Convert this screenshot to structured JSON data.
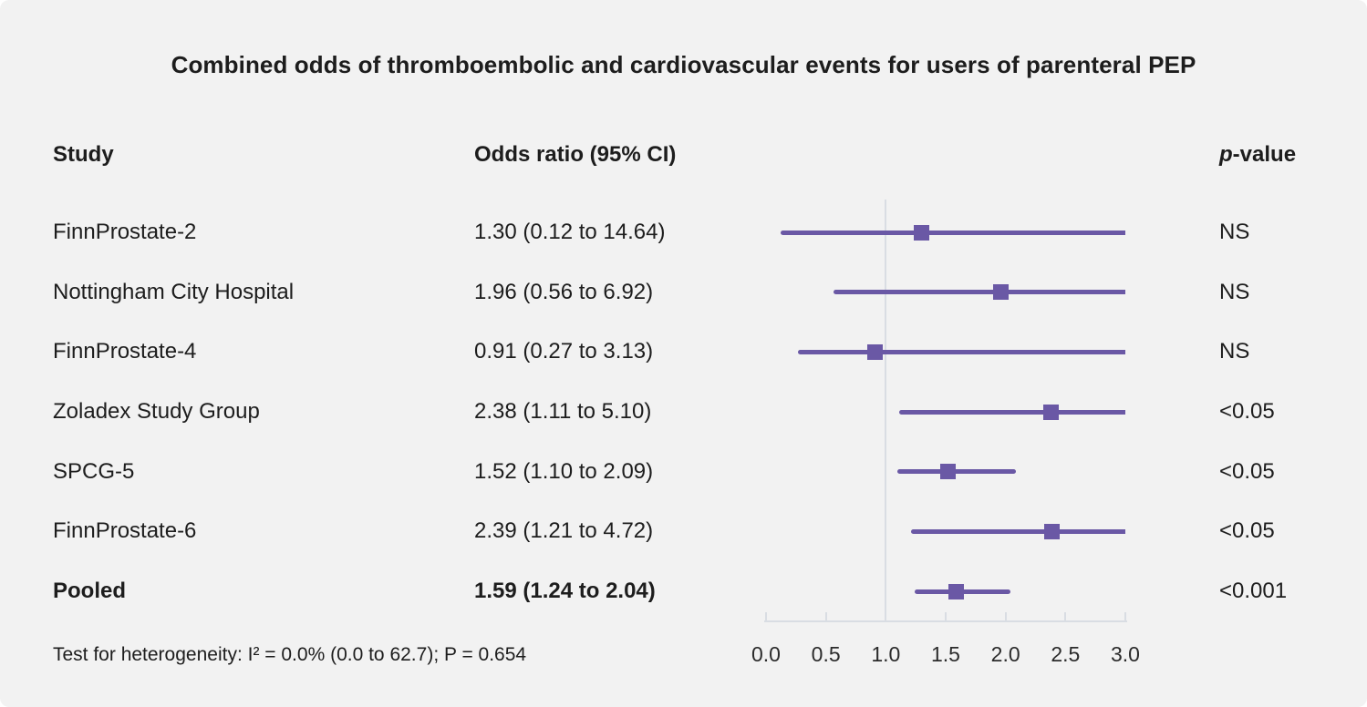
{
  "figure": {
    "title": "Combined odds of thromboembolic and cardiovascular events for users of parenteral PEP",
    "footer": "Test for heterogeneity: I² = 0.0% (0.0 to 62.7); P = 0.654"
  },
  "headers": {
    "study": "Study",
    "odds_ratio": "Odds ratio (95% CI)",
    "p_italic": "p",
    "p_rest": "-value"
  },
  "chart_data": {
    "type": "scatter",
    "subtype": "forest-plot",
    "title": "Combined odds of thromboembolic and cardiovascular events for users of parenteral PEP",
    "xlabel": "",
    "ylabel": "",
    "xlim": [
      0.0,
      3.0
    ],
    "x_ticks": [
      "0.0",
      "0.5",
      "1.0",
      "1.5",
      "2.0",
      "2.5",
      "3.0"
    ],
    "x_tick_values": [
      0.0,
      0.5,
      1.0,
      1.5,
      2.0,
      2.5,
      3.0
    ],
    "reference_line_x": 1.0,
    "grid": false,
    "legend": false,
    "points": [
      {
        "study": "FinnProstate-2",
        "or_text": "1.30 (0.12 to 14.64)",
        "or": 1.3,
        "ci_low": 0.12,
        "ci_high": 14.64,
        "p_value": "NS",
        "bold": false
      },
      {
        "study": "Nottingham City Hospital",
        "or_text": "1.96 (0.56 to 6.92)",
        "or": 1.96,
        "ci_low": 0.56,
        "ci_high": 6.92,
        "p_value": "NS",
        "bold": false
      },
      {
        "study": "FinnProstate-4",
        "or_text": "0.91 (0.27 to 3.13)",
        "or": 0.91,
        "ci_low": 0.27,
        "ci_high": 3.13,
        "p_value": "NS",
        "bold": false
      },
      {
        "study": "Zoladex Study Group",
        "or_text": "2.38 (1.11 to 5.10)",
        "or": 2.38,
        "ci_low": 1.11,
        "ci_high": 5.1,
        "p_value": "<0.05",
        "bold": false
      },
      {
        "study": "SPCG-5",
        "or_text": "1.52 (1.10 to 2.09)",
        "or": 1.52,
        "ci_low": 1.1,
        "ci_high": 2.09,
        "p_value": "<0.05",
        "bold": false
      },
      {
        "study": "FinnProstate-6",
        "or_text": "2.39 (1.21 to 4.72)",
        "or": 2.39,
        "ci_low": 1.21,
        "ci_high": 4.72,
        "p_value": "<0.05",
        "bold": false
      },
      {
        "study": "Pooled",
        "or_text": "1.59 (1.24 to 2.04)",
        "or": 1.59,
        "ci_low": 1.24,
        "ci_high": 2.04,
        "p_value": "<0.001",
        "bold": true
      }
    ]
  },
  "colors": {
    "background": "#f2f2f2",
    "accent": "#6a58a5",
    "axis_line": "#d9dde3",
    "text": "#1d1d1d"
  }
}
